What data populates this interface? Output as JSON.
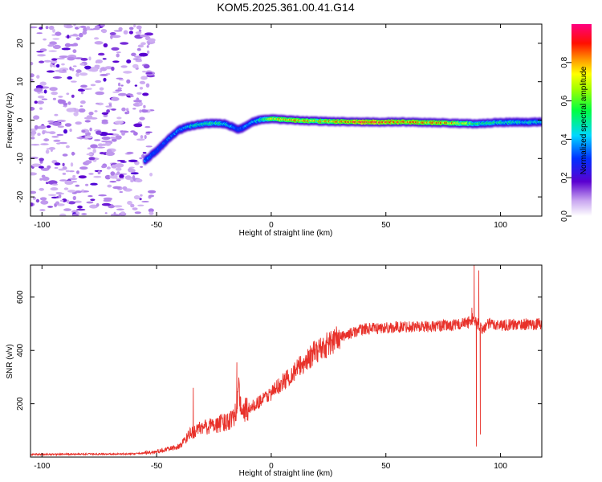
{
  "title": "KOM5.2025.361.00.41.G14",
  "chart_data": [
    {
      "type": "heatmap",
      "name": "spectrogram",
      "xlabel": "Height of straight line (km)",
      "ylabel": "Frequency (Hz)",
      "xlim": [
        -105,
        118
      ],
      "ylim": [
        -25,
        25
      ],
      "xticks": [
        -100,
        -50,
        0,
        50,
        100
      ],
      "yticks": [
        -20,
        -10,
        0,
        10,
        20
      ],
      "noise_region_x": [
        -105,
        -52
      ],
      "ridge": {
        "x": [
          -55,
          -50,
          -45,
          -40,
          -35,
          -30,
          -25,
          -20,
          -16,
          -14,
          -12,
          -8,
          -4,
          0,
          10,
          20,
          40,
          60,
          80,
          90,
          100,
          118
        ],
        "freq": [
          -10.5,
          -8,
          -5,
          -2.5,
          -1.5,
          -1,
          -0.8,
          -1,
          -2,
          -2.5,
          -1.8,
          -0.5,
          0.2,
          0.3,
          0,
          -0.3,
          -0.5,
          -0.5,
          -0.8,
          -1,
          -0.6,
          -0.5
        ],
        "amplitude": [
          0.35,
          0.3,
          0.32,
          0.4,
          0.45,
          0.5,
          0.55,
          0.5,
          0.35,
          0.3,
          0.35,
          0.45,
          0.5,
          0.7,
          0.85,
          0.75,
          0.95,
          0.85,
          0.8,
          0.55,
          0.5,
          0.45
        ]
      },
      "colorbar": {
        "label": "Normalized spectral amplitude",
        "range": [
          0,
          1
        ],
        "ticks": [
          "0.0",
          "0.2",
          "0.4",
          "0.6",
          "0.8"
        ]
      }
    },
    {
      "type": "line",
      "name": "snr",
      "xlabel": "Height of straight line (km)",
      "ylabel": "SNR (v/v)",
      "xlim": [
        -105,
        118
      ],
      "ylim": [
        0,
        720
      ],
      "xticks": [
        -100,
        -50,
        0,
        50,
        100
      ],
      "yticks": [
        200,
        400,
        600
      ],
      "color": "#e8312a",
      "trend": {
        "x": [
          -105,
          -60,
          -50,
          -40,
          -35,
          -30,
          -25,
          -20,
          -16,
          -14,
          -12,
          -10,
          -5,
          0,
          10,
          20,
          30,
          40,
          50,
          60,
          70,
          80,
          86,
          88,
          90,
          92,
          95,
          100,
          118
        ],
        "y": [
          10,
          12,
          20,
          40,
          90,
          110,
          120,
          130,
          160,
          240,
          170,
          180,
          210,
          240,
          320,
          400,
          450,
          480,
          485,
          490,
          490,
          495,
          505,
          520,
          500,
          480,
          500,
          495,
          500
        ]
      },
      "spikes": [
        {
          "x": -34,
          "y": 260
        },
        {
          "x": -15,
          "y": 355
        },
        {
          "x": 87.5,
          "y": 560
        },
        {
          "x": 88.5,
          "y": 720
        },
        {
          "x": 89.5,
          "y": 40
        },
        {
          "x": 90.5,
          "y": 700
        },
        {
          "x": 91.2,
          "y": 85
        }
      ]
    }
  ]
}
